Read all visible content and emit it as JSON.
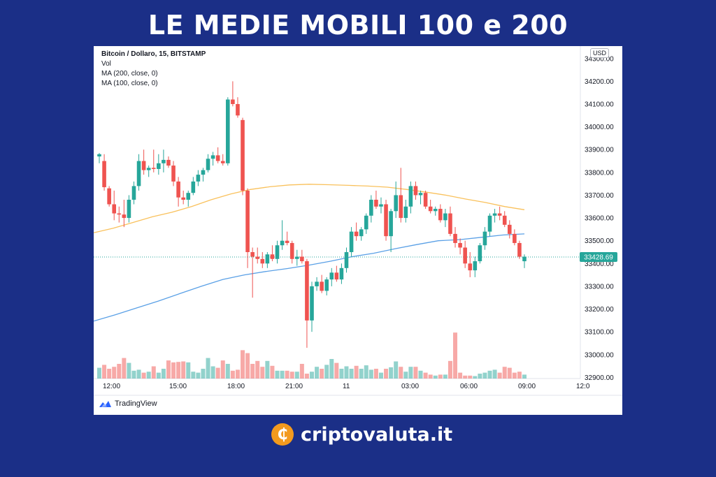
{
  "header": {
    "title": "LE MEDIE MOBILI 100 e 200"
  },
  "legend": {
    "title": "Bitcoin / Dollaro, 15, BITSTAMP",
    "vol": "Vol",
    "ma200": "MA (200, close, 0)",
    "ma100": "MA (100, close, 0)"
  },
  "currency_badge": "USD",
  "branding": {
    "tradingview": "TradingView",
    "site": "criptovaluta.it"
  },
  "colors": {
    "background": "#1b2f87",
    "up": "#26a69a",
    "down": "#ef5350",
    "ma200": "#f9c15c",
    "ma100": "#5aa0e6",
    "coin": "#f39a1e"
  },
  "chart_data": {
    "type": "candlestick",
    "x_tick_labels": [
      "12:00",
      "15:00",
      "18:00",
      "21:00",
      "11",
      "03:00",
      "06:00",
      "09:00",
      "12:0"
    ],
    "y_tick_labels": [
      "34300.00",
      "34200.00",
      "34100.00",
      "34000.00",
      "33900.00",
      "33800.00",
      "33700.00",
      "33600.00",
      "33500.00",
      "33400.00",
      "33300.00",
      "33200.00",
      "33100.00",
      "33000.00",
      "32900.00"
    ],
    "ylim": [
      32895,
      34330
    ],
    "last_price": "33428.69",
    "candles": [
      {
        "o": 33870,
        "h": 33885,
        "l": 33840,
        "c": 33880,
        "v": 0.22
      },
      {
        "o": 33850,
        "h": 33880,
        "l": 33720,
        "c": 33735,
        "v": 0.28
      },
      {
        "o": 33730,
        "h": 33740,
        "l": 33650,
        "c": 33660,
        "v": 0.2
      },
      {
        "o": 33660,
        "h": 33720,
        "l": 33590,
        "c": 33620,
        "v": 0.24
      },
      {
        "o": 33620,
        "h": 33650,
        "l": 33580,
        "c": 33615,
        "v": 0.3
      },
      {
        "o": 33615,
        "h": 33680,
        "l": 33560,
        "c": 33600,
        "v": 0.42
      },
      {
        "o": 33600,
        "h": 33700,
        "l": 33580,
        "c": 33680,
        "v": 0.32
      },
      {
        "o": 33680,
        "h": 33760,
        "l": 33660,
        "c": 33740,
        "v": 0.16
      },
      {
        "o": 33740,
        "h": 33880,
        "l": 33720,
        "c": 33850,
        "v": 0.18
      },
      {
        "o": 33850,
        "h": 33900,
        "l": 33790,
        "c": 33810,
        "v": 0.12
      },
      {
        "o": 33810,
        "h": 33830,
        "l": 33780,
        "c": 33820,
        "v": 0.14
      },
      {
        "o": 33820,
        "h": 33900,
        "l": 33800,
        "c": 33815,
        "v": 0.25
      },
      {
        "o": 33815,
        "h": 33880,
        "l": 33790,
        "c": 33840,
        "v": 0.12
      },
      {
        "o": 33840,
        "h": 33900,
        "l": 33800,
        "c": 33855,
        "v": 0.2
      },
      {
        "o": 33855,
        "h": 33870,
        "l": 33820,
        "c": 33830,
        "v": 0.37
      },
      {
        "o": 33830,
        "h": 33850,
        "l": 33740,
        "c": 33760,
        "v": 0.33
      },
      {
        "o": 33760,
        "h": 33780,
        "l": 33650,
        "c": 33690,
        "v": 0.34
      },
      {
        "o": 33690,
        "h": 33720,
        "l": 33660,
        "c": 33680,
        "v": 0.35
      },
      {
        "o": 33680,
        "h": 33720,
        "l": 33650,
        "c": 33710,
        "v": 0.33
      },
      {
        "o": 33710,
        "h": 33780,
        "l": 33700,
        "c": 33760,
        "v": 0.14
      },
      {
        "o": 33760,
        "h": 33810,
        "l": 33740,
        "c": 33790,
        "v": 0.12
      },
      {
        "o": 33790,
        "h": 33820,
        "l": 33760,
        "c": 33810,
        "v": 0.2
      },
      {
        "o": 33810,
        "h": 33880,
        "l": 33800,
        "c": 33860,
        "v": 0.42
      },
      {
        "o": 33860,
        "h": 33890,
        "l": 33830,
        "c": 33875,
        "v": 0.25
      },
      {
        "o": 33875,
        "h": 33910,
        "l": 33840,
        "c": 33850,
        "v": 0.22
      },
      {
        "o": 33850,
        "h": 33880,
        "l": 33830,
        "c": 33840,
        "v": 0.37
      },
      {
        "o": 33840,
        "h": 34130,
        "l": 33830,
        "c": 34120,
        "v": 0.3
      },
      {
        "o": 34120,
        "h": 34200,
        "l": 34090,
        "c": 34100,
        "v": 0.16
      },
      {
        "o": 34100,
        "h": 34130,
        "l": 34040,
        "c": 34050,
        "v": 0.18
      },
      {
        "o": 34030,
        "h": 34040,
        "l": 33700,
        "c": 33720,
        "v": 0.58
      },
      {
        "o": 33720,
        "h": 33730,
        "l": 33380,
        "c": 33450,
        "v": 0.52
      },
      {
        "o": 33450,
        "h": 33470,
        "l": 33250,
        "c": 33430,
        "v": 0.3
      },
      {
        "o": 33430,
        "h": 33470,
        "l": 33400,
        "c": 33420,
        "v": 0.36
      },
      {
        "o": 33420,
        "h": 33450,
        "l": 33380,
        "c": 33400,
        "v": 0.24
      },
      {
        "o": 33400,
        "h": 33450,
        "l": 33380,
        "c": 33440,
        "v": 0.36
      },
      {
        "o": 33440,
        "h": 33480,
        "l": 33410,
        "c": 33420,
        "v": 0.26
      },
      {
        "o": 33420,
        "h": 33500,
        "l": 33400,
        "c": 33480,
        "v": 0.16
      },
      {
        "o": 33480,
        "h": 33590,
        "l": 33460,
        "c": 33500,
        "v": 0.16
      },
      {
        "o": 33500,
        "h": 33540,
        "l": 33480,
        "c": 33490,
        "v": 0.16
      },
      {
        "o": 33490,
        "h": 33500,
        "l": 33400,
        "c": 33420,
        "v": 0.14
      },
      {
        "o": 33420,
        "h": 33460,
        "l": 33390,
        "c": 33430,
        "v": 0.14
      },
      {
        "o": 33430,
        "h": 33460,
        "l": 33400,
        "c": 33410,
        "v": 0.3
      },
      {
        "o": 33410,
        "h": 33420,
        "l": 33030,
        "c": 33150,
        "v": 0.1
      },
      {
        "o": 33150,
        "h": 33320,
        "l": 33100,
        "c": 33300,
        "v": 0.14
      },
      {
        "o": 33300,
        "h": 33340,
        "l": 33280,
        "c": 33320,
        "v": 0.24
      },
      {
        "o": 33320,
        "h": 33350,
        "l": 33270,
        "c": 33280,
        "v": 0.2
      },
      {
        "o": 33280,
        "h": 33340,
        "l": 33260,
        "c": 33330,
        "v": 0.28
      },
      {
        "o": 33330,
        "h": 33380,
        "l": 33300,
        "c": 33360,
        "v": 0.4
      },
      {
        "o": 33360,
        "h": 33390,
        "l": 33320,
        "c": 33330,
        "v": 0.32
      },
      {
        "o": 33330,
        "h": 33400,
        "l": 33310,
        "c": 33380,
        "v": 0.2
      },
      {
        "o": 33380,
        "h": 33470,
        "l": 33360,
        "c": 33450,
        "v": 0.25
      },
      {
        "o": 33450,
        "h": 33560,
        "l": 33430,
        "c": 33540,
        "v": 0.2
      },
      {
        "o": 33540,
        "h": 33580,
        "l": 33500,
        "c": 33520,
        "v": 0.26
      },
      {
        "o": 33520,
        "h": 33560,
        "l": 33500,
        "c": 33550,
        "v": 0.2
      },
      {
        "o": 33550,
        "h": 33620,
        "l": 33530,
        "c": 33610,
        "v": 0.27
      },
      {
        "o": 33610,
        "h": 33700,
        "l": 33580,
        "c": 33680,
        "v": 0.18
      },
      {
        "o": 33680,
        "h": 33720,
        "l": 33640,
        "c": 33650,
        "v": 0.2
      },
      {
        "o": 33650,
        "h": 33690,
        "l": 33620,
        "c": 33660,
        "v": 0.12
      },
      {
        "o": 33660,
        "h": 33680,
        "l": 33500,
        "c": 33520,
        "v": 0.2
      },
      {
        "o": 33520,
        "h": 33640,
        "l": 33450,
        "c": 33630,
        "v": 0.23
      },
      {
        "o": 33630,
        "h": 33760,
        "l": 33600,
        "c": 33700,
        "v": 0.35
      },
      {
        "o": 33700,
        "h": 33820,
        "l": 33580,
        "c": 33600,
        "v": 0.24
      },
      {
        "o": 33600,
        "h": 33680,
        "l": 33580,
        "c": 33650,
        "v": 0.14
      },
      {
        "o": 33650,
        "h": 33760,
        "l": 33620,
        "c": 33740,
        "v": 0.24
      },
      {
        "o": 33740,
        "h": 33760,
        "l": 33680,
        "c": 33700,
        "v": 0.24
      },
      {
        "o": 33700,
        "h": 33720,
        "l": 33660,
        "c": 33710,
        "v": 0.16
      },
      {
        "o": 33710,
        "h": 33720,
        "l": 33640,
        "c": 33650,
        "v": 0.12
      },
      {
        "o": 33650,
        "h": 33680,
        "l": 33620,
        "c": 33630,
        "v": 0.08
      },
      {
        "o": 33630,
        "h": 33650,
        "l": 33610,
        "c": 33640,
        "v": 0.06
      },
      {
        "o": 33640,
        "h": 33660,
        "l": 33580,
        "c": 33590,
        "v": 0.08
      },
      {
        "o": 33590,
        "h": 33640,
        "l": 33560,
        "c": 33620,
        "v": 0.08
      },
      {
        "o": 33620,
        "h": 33650,
        "l": 33520,
        "c": 33530,
        "v": 0.36
      },
      {
        "o": 33530,
        "h": 33560,
        "l": 33470,
        "c": 33490,
        "v": 0.94
      },
      {
        "o": 33490,
        "h": 33510,
        "l": 33440,
        "c": 33470,
        "v": 0.12
      },
      {
        "o": 33470,
        "h": 33500,
        "l": 33380,
        "c": 33400,
        "v": 0.06
      },
      {
        "o": 33400,
        "h": 33450,
        "l": 33340,
        "c": 33370,
        "v": 0.06
      },
      {
        "o": 33370,
        "h": 33430,
        "l": 33340,
        "c": 33410,
        "v": 0.05
      },
      {
        "o": 33410,
        "h": 33490,
        "l": 33400,
        "c": 33480,
        "v": 0.1
      },
      {
        "o": 33480,
        "h": 33560,
        "l": 33460,
        "c": 33540,
        "v": 0.12
      },
      {
        "o": 33540,
        "h": 33620,
        "l": 33520,
        "c": 33610,
        "v": 0.16
      },
      {
        "o": 33610,
        "h": 33640,
        "l": 33580,
        "c": 33620,
        "v": 0.18
      },
      {
        "o": 33620,
        "h": 33650,
        "l": 33590,
        "c": 33610,
        "v": 0.12
      },
      {
        "o": 33610,
        "h": 33630,
        "l": 33560,
        "c": 33570,
        "v": 0.24
      },
      {
        "o": 33570,
        "h": 33590,
        "l": 33510,
        "c": 33530,
        "v": 0.22
      },
      {
        "o": 33530,
        "h": 33550,
        "l": 33480,
        "c": 33490,
        "v": 0.12
      },
      {
        "o": 33490,
        "h": 33500,
        "l": 33420,
        "c": 33430,
        "v": 0.14
      },
      {
        "o": 33410,
        "h": 33440,
        "l": 33380,
        "c": 33430,
        "v": 0.08
      }
    ],
    "ma200": [
      33535,
      33555,
      33580,
      33605,
      33625,
      33650,
      33680,
      33705,
      33725,
      33737,
      33745,
      33748,
      33746,
      33743,
      33740,
      33735,
      33725,
      33713,
      33700,
      33683,
      33668,
      33650,
      33636
    ],
    "ma100": [
      33147,
      33175,
      33205,
      33235,
      33268,
      33300,
      33330,
      33350,
      33365,
      33378,
      33393,
      33410,
      33430,
      33445,
      33465,
      33483,
      33500,
      33505,
      33515,
      33525,
      33530
    ]
  }
}
